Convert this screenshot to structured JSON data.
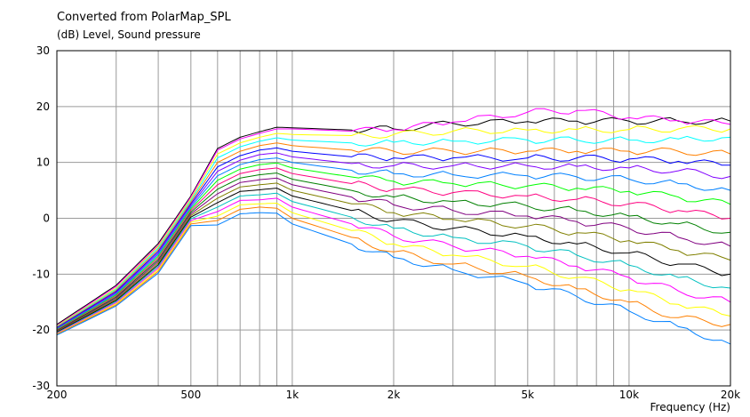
{
  "chart_data": {
    "type": "line",
    "title": "Converted from PolarMap_SPL",
    "ylabel": "(dB)  Level, Sound pressure",
    "xlabel": "Frequency  (Hz)",
    "xscale": "log",
    "xlim": [
      200,
      20000
    ],
    "ylim": [
      -30,
      30
    ],
    "grid": true,
    "xticks": [
      {
        "value": 200,
        "label": "200"
      },
      {
        "value": 500,
        "label": "500"
      },
      {
        "value": 1000,
        "label": "1k"
      },
      {
        "value": 2000,
        "label": "2k"
      },
      {
        "value": 5000,
        "label": "5k"
      },
      {
        "value": 10000,
        "label": "10k"
      },
      {
        "value": 20000,
        "label": "20k"
      }
    ],
    "yticks": [
      {
        "value": 30,
        "label": "30"
      },
      {
        "value": 20,
        "label": "20"
      },
      {
        "value": 10,
        "label": "10"
      },
      {
        "value": 0,
        "label": "0"
      },
      {
        "value": -10,
        "label": "-10"
      },
      {
        "value": -20,
        "label": "-20"
      },
      {
        "value": -30,
        "label": "-30"
      }
    ],
    "x": [
      200,
      300,
      400,
      500,
      600,
      700,
      800,
      900,
      1000,
      1500,
      2000,
      3000,
      5000,
      7000,
      10000,
      14000,
      20000
    ],
    "series": [
      {
        "color": "#000000",
        "values": [
          -19.0,
          -12.0,
          -4.5,
          4.0,
          12.5,
          14.5,
          15.5,
          16.3,
          16.2,
          15.8,
          16.0,
          17.0,
          17.3,
          17.4,
          17.4,
          17.4,
          17.4
        ]
      },
      {
        "color": "#ff00ff",
        "values": [
          -19.2,
          -12.2,
          -4.8,
          3.8,
          12.2,
          14.2,
          15.2,
          16.0,
          16.0,
          15.6,
          15.9,
          17.2,
          19.0,
          19.3,
          18.0,
          17.5,
          16.8
        ]
      },
      {
        "color": "#ffff00",
        "values": [
          -19.3,
          -12.5,
          -5.0,
          3.5,
          11.5,
          13.5,
          14.5,
          15.2,
          15.0,
          14.8,
          15.0,
          15.6,
          15.8,
          15.9,
          15.9,
          16.0,
          16.0
        ]
      },
      {
        "color": "#00ffff",
        "values": [
          -19.4,
          -12.7,
          -5.3,
          3.2,
          10.8,
          12.8,
          13.8,
          14.4,
          14.0,
          13.5,
          13.6,
          13.8,
          14.0,
          14.0,
          14.0,
          14.2,
          14.5
        ]
      },
      {
        "color": "#ff8000",
        "values": [
          -19.5,
          -12.9,
          -5.6,
          2.9,
          10.0,
          12.0,
          13.0,
          13.5,
          13.0,
          12.2,
          12.0,
          12.0,
          12.0,
          12.0,
          12.0,
          12.0,
          11.5
        ]
      },
      {
        "color": "#0000ff",
        "values": [
          -19.6,
          -13.1,
          -5.9,
          2.6,
          9.2,
          11.2,
          12.2,
          12.6,
          12.0,
          11.0,
          10.8,
          10.8,
          10.8,
          10.8,
          10.6,
          10.2,
          9.5
        ]
      },
      {
        "color": "#8000ff",
        "values": [
          -19.7,
          -13.3,
          -6.2,
          2.3,
          8.4,
          10.4,
          11.4,
          11.7,
          11.0,
          9.8,
          9.4,
          9.4,
          9.4,
          9.3,
          9.0,
          8.5,
          7.5
        ]
      },
      {
        "color": "#0080ff",
        "values": [
          -19.8,
          -13.5,
          -6.5,
          2.0,
          7.6,
          9.6,
          10.5,
          10.8,
          10.0,
          8.6,
          8.0,
          7.8,
          7.6,
          7.4,
          7.0,
          6.2,
          5.0
        ]
      },
      {
        "color": "#00ff00",
        "values": [
          -19.9,
          -13.7,
          -6.8,
          1.7,
          6.8,
          8.8,
          9.6,
          9.9,
          9.0,
          7.4,
          6.6,
          6.2,
          5.8,
          5.4,
          4.8,
          3.8,
          2.5
        ]
      },
      {
        "color": "#ff0080",
        "values": [
          -20.0,
          -13.9,
          -7.1,
          1.4,
          6.0,
          8.0,
          8.7,
          9.0,
          8.0,
          6.2,
          5.2,
          4.6,
          4.0,
          3.4,
          2.6,
          1.4,
          0.0
        ]
      },
      {
        "color": "#008000",
        "values": [
          -20.1,
          -14.1,
          -7.4,
          1.1,
          5.2,
          7.2,
          7.8,
          8.1,
          7.0,
          5.0,
          3.8,
          3.0,
          2.2,
          1.4,
          0.4,
          -1.0,
          -2.5
        ]
      },
      {
        "color": "#800080",
        "values": [
          -20.2,
          -14.3,
          -7.7,
          0.8,
          4.4,
          6.4,
          6.9,
          7.2,
          6.0,
          3.8,
          2.4,
          1.4,
          0.4,
          -0.6,
          -1.8,
          -3.4,
          -5.0
        ]
      },
      {
        "color": "#808000",
        "values": [
          -20.3,
          -14.5,
          -8.0,
          0.5,
          3.6,
          5.6,
          6.0,
          6.3,
          5.0,
          2.6,
          1.0,
          -0.2,
          -1.4,
          -2.6,
          -4.0,
          -5.8,
          -7.5
        ]
      },
      {
        "color": "#000000",
        "values": [
          -20.4,
          -14.7,
          -8.3,
          0.2,
          2.8,
          4.8,
          5.1,
          5.4,
          4.0,
          1.4,
          -0.4,
          -1.8,
          -3.2,
          -4.6,
          -6.2,
          -8.2,
          -10.0
        ]
      },
      {
        "color": "#00c0c0",
        "values": [
          -20.5,
          -14.9,
          -8.6,
          -0.1,
          2.0,
          4.0,
          4.2,
          4.5,
          3.0,
          0.2,
          -1.8,
          -3.4,
          -5.0,
          -6.6,
          -8.4,
          -10.6,
          -12.5
        ]
      },
      {
        "color": "#ff00ff",
        "values": [
          -20.6,
          -15.1,
          -8.9,
          -0.4,
          1.2,
          3.2,
          3.3,
          3.6,
          2.0,
          -1.0,
          -3.2,
          -5.0,
          -6.8,
          -8.6,
          -10.6,
          -13.0,
          -15.0
        ]
      },
      {
        "color": "#ffff00",
        "values": [
          -20.7,
          -15.3,
          -9.2,
          -0.7,
          0.4,
          2.4,
          2.6,
          2.7,
          1.0,
          -2.2,
          -4.6,
          -6.6,
          -8.6,
          -10.6,
          -12.8,
          -15.4,
          -17.5
        ]
      },
      {
        "color": "#ff8000",
        "values": [
          -20.8,
          -15.5,
          -9.5,
          -1.0,
          -0.4,
          1.6,
          2.0,
          1.8,
          0.0,
          -3.4,
          -6.0,
          -8.2,
          -10.4,
          -12.6,
          -15.0,
          -17.8,
          -19.0
        ]
      },
      {
        "color": "#0080ff",
        "values": [
          -20.9,
          -15.7,
          -9.8,
          -1.3,
          -1.2,
          0.8,
          1.0,
          0.9,
          -1.0,
          -4.6,
          -7.0,
          -9.2,
          -11.8,
          -14.0,
          -16.6,
          -19.4,
          -22.5
        ]
      }
    ]
  }
}
